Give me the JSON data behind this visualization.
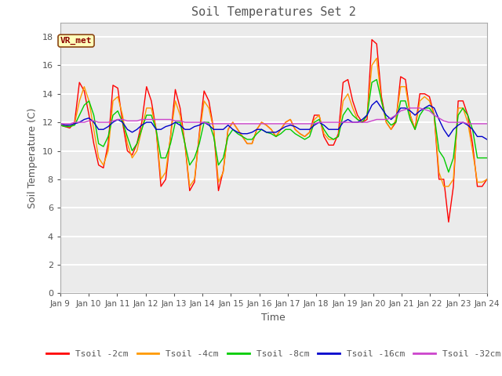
{
  "title": "Soil Temperatures Set 2",
  "xlabel": "Time",
  "ylabel": "Soil Temperature (C)",
  "ylim": [
    0,
    19
  ],
  "yticks": [
    0,
    2,
    4,
    6,
    8,
    10,
    12,
    14,
    16,
    18
  ],
  "x_labels": [
    "Jan 9",
    "Jan 10",
    "Jan 11",
    "Jan 12",
    "Jan 13",
    "Jan 14",
    "Jan 15",
    "Jan 16",
    "Jan 17",
    "Jan 18",
    "Jan 19",
    "Jan 20",
    "Jan 21",
    "Jan 22",
    "Jan 23",
    "Jan 24"
  ],
  "annotation_text": "VR_met",
  "series_colors": {
    "Tsoil -2cm": "#ff0000",
    "Tsoil -4cm": "#ff9900",
    "Tsoil -8cm": "#00cc00",
    "Tsoil -16cm": "#0000cc",
    "Tsoil -32cm": "#cc44cc"
  },
  "background_color": "#ffffff",
  "plot_bg_color": "#ebebeb",
  "grid_color": "#ffffff",
  "title_color": "#555555",
  "label_color": "#555555",
  "t2cm": [
    11.8,
    11.7,
    11.6,
    12.0,
    14.8,
    14.2,
    12.5,
    10.5,
    9.0,
    8.8,
    10.5,
    14.6,
    14.4,
    12.0,
    10.0,
    9.7,
    10.5,
    12.0,
    14.5,
    13.5,
    11.5,
    7.5,
    8.0,
    11.0,
    14.3,
    13.0,
    10.5,
    7.2,
    7.8,
    11.2,
    14.2,
    13.5,
    11.5,
    7.2,
    8.6,
    11.5,
    12.0,
    11.5,
    11.0,
    10.5,
    10.5,
    11.5,
    12.0,
    11.8,
    11.5,
    11.0,
    11.5,
    12.0,
    12.2,
    11.5,
    11.2,
    11.0,
    11.3,
    12.5,
    12.5,
    11.0,
    10.4,
    10.4,
    11.2,
    14.8,
    15.0,
    13.5,
    12.5,
    12.0,
    12.2,
    17.8,
    17.5,
    13.8,
    12.0,
    11.5,
    12.0,
    15.2,
    15.0,
    12.5,
    11.5,
    14.0,
    14.0,
    13.8,
    12.5,
    8.0,
    8.0,
    5.0,
    7.5,
    13.5,
    13.5,
    12.5,
    10.5,
    7.5,
    7.5,
    8.0
  ],
  "t4cm": [
    11.9,
    11.8,
    11.7,
    11.9,
    13.5,
    14.5,
    13.5,
    11.5,
    9.5,
    9.0,
    10.0,
    13.5,
    13.8,
    12.5,
    10.5,
    9.5,
    10.0,
    11.5,
    13.0,
    13.0,
    11.5,
    8.0,
    8.5,
    11.0,
    13.5,
    12.5,
    10.5,
    7.5,
    8.0,
    11.0,
    13.5,
    13.0,
    11.5,
    7.8,
    8.5,
    11.5,
    12.0,
    11.5,
    11.0,
    10.5,
    10.5,
    11.5,
    12.0,
    11.8,
    11.5,
    11.0,
    11.5,
    12.0,
    12.2,
    11.5,
    11.2,
    11.0,
    11.3,
    12.2,
    12.5,
    11.2,
    10.8,
    10.8,
    11.0,
    13.5,
    14.0,
    13.0,
    12.2,
    12.0,
    12.5,
    16.0,
    16.5,
    13.5,
    12.0,
    11.5,
    12.2,
    14.5,
    14.5,
    12.5,
    11.5,
    13.5,
    13.8,
    13.5,
    12.5,
    8.5,
    7.5,
    7.5,
    8.0,
    13.0,
    13.0,
    12.0,
    10.0,
    7.8,
    7.8,
    8.0
  ],
  "t8cm": [
    11.8,
    11.7,
    11.7,
    11.8,
    12.5,
    13.2,
    13.5,
    12.5,
    10.5,
    10.3,
    11.0,
    12.5,
    12.8,
    12.0,
    11.0,
    10.0,
    10.5,
    11.5,
    12.5,
    12.5,
    11.5,
    9.5,
    9.5,
    10.5,
    12.0,
    12.0,
    10.5,
    9.0,
    9.5,
    10.5,
    12.0,
    12.0,
    11.0,
    9.0,
    9.5,
    11.0,
    11.5,
    11.2,
    11.0,
    10.8,
    10.8,
    11.2,
    11.5,
    11.3,
    11.2,
    11.0,
    11.2,
    11.5,
    11.5,
    11.2,
    11.0,
    10.8,
    11.0,
    12.0,
    12.2,
    11.5,
    11.0,
    10.8,
    11.0,
    12.5,
    13.0,
    12.5,
    12.2,
    12.0,
    12.5,
    14.8,
    15.0,
    13.5,
    12.2,
    11.8,
    12.0,
    13.5,
    13.5,
    12.2,
    11.5,
    12.5,
    13.0,
    13.0,
    12.5,
    10.0,
    9.5,
    8.5,
    9.5,
    12.5,
    13.0,
    12.5,
    11.5,
    9.5,
    9.5,
    9.5
  ],
  "t16cm": [
    11.9,
    11.8,
    11.8,
    11.9,
    12.0,
    12.2,
    12.3,
    12.0,
    11.5,
    11.5,
    11.7,
    12.0,
    12.2,
    12.0,
    11.5,
    11.3,
    11.5,
    11.8,
    12.0,
    12.0,
    11.5,
    11.5,
    11.7,
    11.8,
    12.0,
    11.8,
    11.5,
    11.5,
    11.7,
    11.8,
    12.0,
    11.8,
    11.5,
    11.5,
    11.5,
    11.8,
    11.5,
    11.3,
    11.2,
    11.2,
    11.3,
    11.5,
    11.5,
    11.3,
    11.3,
    11.3,
    11.5,
    11.7,
    11.8,
    11.7,
    11.5,
    11.5,
    11.5,
    11.8,
    12.0,
    11.8,
    11.5,
    11.5,
    11.5,
    12.0,
    12.2,
    12.0,
    12.0,
    12.2,
    12.5,
    13.2,
    13.5,
    13.0,
    12.5,
    12.2,
    12.5,
    13.0,
    13.0,
    12.8,
    12.5,
    12.8,
    13.0,
    13.2,
    13.0,
    12.2,
    11.5,
    11.0,
    11.5,
    11.8,
    12.0,
    11.8,
    11.5,
    11.0,
    11.0,
    10.8
  ],
  "t32cm": [
    11.9,
    11.9,
    11.9,
    12.0,
    12.0,
    12.0,
    12.1,
    12.1,
    12.0,
    12.0,
    12.0,
    12.1,
    12.2,
    12.2,
    12.1,
    12.1,
    12.1,
    12.2,
    12.2,
    12.2,
    12.2,
    12.2,
    12.2,
    12.2,
    12.1,
    12.1,
    12.0,
    12.0,
    12.0,
    12.0,
    12.0,
    11.9,
    11.9,
    11.9,
    11.9,
    11.9,
    11.9,
    11.9,
    11.9,
    11.9,
    11.9,
    11.9,
    11.9,
    11.9,
    11.9,
    11.9,
    11.9,
    11.9,
    11.9,
    11.9,
    11.9,
    11.9,
    11.9,
    11.9,
    12.0,
    12.0,
    12.0,
    12.0,
    12.0,
    12.0,
    12.0,
    12.0,
    12.0,
    12.0,
    12.0,
    12.1,
    12.2,
    12.2,
    12.2,
    12.3,
    12.5,
    12.8,
    12.9,
    13.0,
    13.0,
    13.0,
    12.9,
    12.8,
    12.5,
    12.3,
    12.1,
    12.0,
    12.0,
    12.0,
    12.0,
    11.9,
    11.9,
    11.9,
    11.9,
    11.9
  ]
}
